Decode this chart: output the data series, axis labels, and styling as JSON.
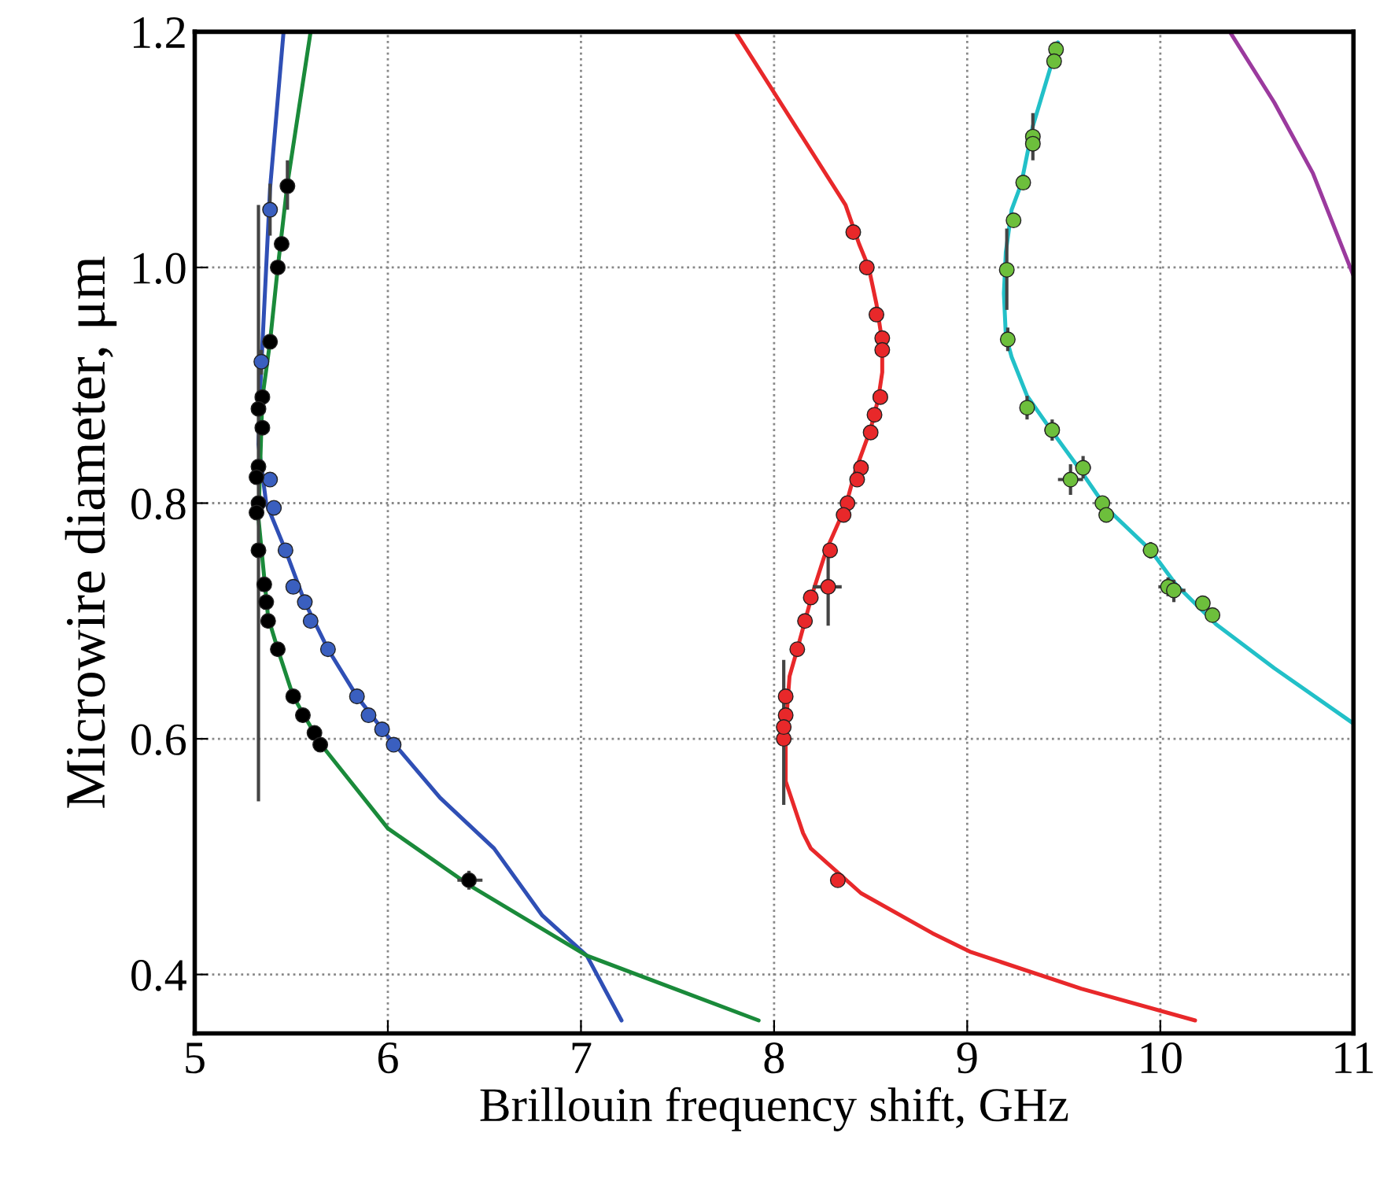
{
  "chart_data": {
    "type": "scatter",
    "xlabel": "Brillouin frequency shift, GHz",
    "ylabel": "Microwire diameter, μm",
    "xlim": [
      5,
      11
    ],
    "xticks": [
      5,
      6,
      7,
      8,
      9,
      10,
      11
    ],
    "ylim": [
      0.35,
      1.2
    ],
    "yticks": [
      0.4,
      0.6,
      0.8,
      {
        "value": 1.0,
        "label": "1.0"
      },
      1.2
    ],
    "grid": true,
    "series": [
      {
        "type": "line",
        "color": "#2f4fb5",
        "x": [
          5.46,
          5.39,
          5.34,
          5.33,
          5.37,
          5.47,
          5.57,
          5.69,
          5.84,
          5.99,
          6.27,
          6.55,
          6.8,
          7.03,
          7.21
        ],
        "values": [
          1.2,
          1.067,
          0.9,
          0.85,
          0.8,
          0.76,
          0.716,
          0.676,
          0.636,
          0.604,
          0.55,
          0.507,
          0.45,
          0.416,
          0.361
        ]
      },
      {
        "type": "line",
        "color": "#1a8a3a",
        "x": [
          5.6,
          5.48,
          5.43,
          5.39,
          5.35,
          5.33,
          5.38,
          5.43,
          5.51,
          5.65,
          6.0,
          6.42,
          7.03,
          7.92
        ],
        "values": [
          1.2,
          1.071,
          1.0,
          0.937,
          0.889,
          0.787,
          0.703,
          0.676,
          0.636,
          0.596,
          0.524,
          0.476,
          0.416,
          0.361
        ]
      },
      {
        "type": "line",
        "color": "#e8282a",
        "x": [
          7.8,
          8.37,
          8.44,
          8.49,
          8.53,
          8.56,
          8.56,
          8.54,
          8.5,
          8.42,
          8.37,
          8.27,
          8.2,
          8.12,
          8.08,
          8.06,
          8.06,
          8.15,
          8.19,
          8.45,
          8.82,
          9.02,
          9.59,
          10.18
        ],
        "values": [
          1.2,
          1.053,
          1.02,
          1.0,
          0.969,
          0.937,
          0.911,
          0.889,
          0.863,
          0.827,
          0.797,
          0.76,
          0.724,
          0.676,
          0.653,
          0.609,
          0.564,
          0.52,
          0.507,
          0.469,
          0.435,
          0.419,
          0.388,
          0.361
        ]
      },
      {
        "type": "line",
        "color": "#22c0c8",
        "x": [
          9.47,
          9.43,
          9.34,
          9.28,
          9.23,
          9.2,
          9.19,
          9.2,
          9.23,
          9.31,
          9.43,
          9.59,
          9.72,
          9.95,
          10.08,
          10.29,
          10.59,
          11.0
        ],
        "values": [
          1.191,
          1.169,
          1.12,
          1.071,
          1.049,
          1.013,
          0.978,
          0.942,
          0.924,
          0.891,
          0.863,
          0.827,
          0.796,
          0.76,
          0.731,
          0.697,
          0.66,
          0.613
        ]
      },
      {
        "type": "line",
        "color": "#9b3a9e",
        "x": [
          10.36,
          10.59,
          10.79,
          11.0
        ],
        "values": [
          1.2,
          1.14,
          1.08,
          0.993
        ]
      },
      {
        "color": "#3a5fbf",
        "x": [
          5.39,
          5.345,
          5.39,
          5.41,
          5.47,
          5.51,
          5.57,
          5.6,
          5.69,
          5.84,
          5.9,
          5.97,
          6.03
        ],
        "values": [
          1.049,
          0.92,
          0.82,
          0.796,
          0.76,
          0.729,
          0.716,
          0.7,
          0.676,
          0.636,
          0.62,
          0.608,
          0.595
        ],
        "xerrors": [
          [
            5.375,
            5.405
          ],
          [
            5.33,
            5.36
          ],
          null,
          null,
          null,
          null,
          null,
          null,
          null,
          null,
          null,
          null,
          null
        ],
        "errors": [
          [
            1.027,
            1.071
          ],
          [
            0.909,
            0.93
          ],
          null,
          null,
          null,
          null,
          null,
          null,
          null,
          null,
          null,
          null,
          null
        ]
      },
      {
        "color": "#000000",
        "x": [
          5.48,
          5.45,
          5.43,
          5.39,
          5.35,
          5.33,
          5.35,
          5.33,
          5.32,
          5.33,
          5.32,
          5.33,
          5.36,
          5.37,
          5.38,
          5.43,
          5.51,
          5.56,
          5.62,
          5.65,
          6.42
        ],
        "values": [
          1.069,
          1.02,
          1.0,
          0.937,
          0.89,
          0.88,
          0.864,
          0.831,
          0.822,
          0.8,
          0.792,
          0.76,
          0.731,
          0.716,
          0.7,
          0.676,
          0.636,
          0.62,
          0.605,
          0.595,
          0.48
        ],
        "xerrors": [
          [
            5.46,
            5.51
          ],
          null,
          null,
          null,
          null,
          null,
          null,
          null,
          null,
          null,
          null,
          null,
          null,
          null,
          null,
          null,
          null,
          null,
          null,
          null,
          [
            6.36,
            6.49
          ]
        ],
        "errors": [
          [
            1.049,
            1.091
          ],
          null,
          null,
          null,
          null,
          null,
          null,
          null,
          null,
          [
            0.547,
            1.053
          ],
          null,
          null,
          null,
          null,
          null,
          null,
          null,
          null,
          null,
          null,
          [
            0.472,
            0.488
          ]
        ]
      },
      {
        "color": "#e8282a",
        "x": [
          8.41,
          8.48,
          8.53,
          8.56,
          8.56,
          8.55,
          8.52,
          8.5,
          8.45,
          8.43,
          8.38,
          8.36,
          8.29,
          8.28,
          8.19,
          8.16,
          8.12,
          8.06,
          8.06,
          8.05,
          8.05,
          8.33
        ],
        "values": [
          1.03,
          1.0,
          0.96,
          0.94,
          0.93,
          0.89,
          0.875,
          0.86,
          0.83,
          0.82,
          0.8,
          0.79,
          0.76,
          0.729,
          0.72,
          0.7,
          0.676,
          0.636,
          0.62,
          0.6,
          0.61,
          0.48
        ],
        "xerrors": [
          null,
          null,
          null,
          null,
          null,
          null,
          null,
          null,
          null,
          null,
          null,
          null,
          null,
          [
            8.2,
            8.35
          ],
          null,
          null,
          null,
          null,
          null,
          null,
          [
            8.04,
            8.08
          ],
          null
        ],
        "errors": [
          null,
          null,
          null,
          null,
          null,
          null,
          null,
          null,
          null,
          null,
          null,
          null,
          null,
          [
            0.696,
            0.763
          ],
          null,
          null,
          null,
          null,
          null,
          null,
          [
            0.544,
            0.667
          ],
          null
        ]
      },
      {
        "color": "#6dbf3c",
        "x": [
          9.46,
          9.45,
          9.34,
          9.34,
          9.29,
          9.24,
          9.205,
          9.21,
          9.31,
          9.44,
          9.535,
          9.6,
          9.7,
          9.72,
          9.95,
          10.04,
          10.07,
          10.22,
          10.27
        ],
        "values": [
          1.185,
          1.175,
          1.111,
          1.105,
          1.072,
          1.04,
          0.998,
          0.939,
          0.881,
          0.862,
          0.82,
          0.83,
          0.8,
          0.79,
          0.76,
          0.729,
          0.726,
          0.715,
          0.705
        ],
        "xerrors": [
          null,
          null,
          [
            9.32,
            9.36
          ],
          null,
          null,
          null,
          [
            9.18,
            9.23
          ],
          [
            9.19,
            9.23
          ],
          [
            9.28,
            9.34
          ],
          [
            9.4,
            9.47
          ],
          [
            9.47,
            9.6
          ],
          [
            9.56,
            9.64
          ],
          null,
          null,
          [
            9.91,
            9.99
          ],
          [
            9.99,
            10.09
          ],
          [
            10.01,
            10.13
          ],
          [
            10.19,
            10.25
          ],
          null
        ],
        "errors": [
          null,
          null,
          [
            1.091,
            1.131
          ],
          null,
          null,
          null,
          [
            0.964,
            1.033
          ],
          [
            0.929,
            0.949
          ],
          [
            0.871,
            0.891
          ],
          [
            0.853,
            0.871
          ],
          [
            0.807,
            0.833
          ],
          [
            0.821,
            0.84
          ],
          null,
          null,
          [
            0.753,
            0.767
          ],
          [
            0.721,
            0.737
          ],
          [
            0.716,
            0.735
          ],
          [
            0.709,
            0.72
          ],
          null
        ]
      }
    ]
  }
}
